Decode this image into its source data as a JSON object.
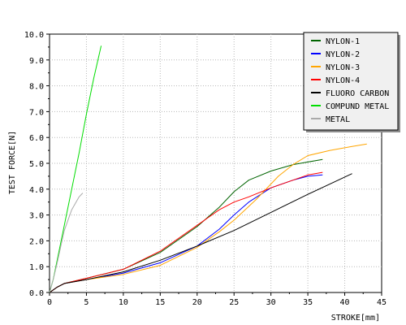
{
  "chart_data": {
    "type": "line",
    "xlabel": "STROKE[mm]",
    "ylabel": "TEST FORCE[N]",
    "xlim": [
      0,
      45
    ],
    "ylim": [
      0,
      10
    ],
    "x_ticks": [
      0,
      5,
      10,
      15,
      20,
      25,
      30,
      35,
      40,
      45
    ],
    "y_ticks": [
      0,
      1,
      2,
      3,
      4,
      5,
      6,
      7,
      8,
      9,
      10
    ],
    "x_tick_labels": [
      "0",
      "5",
      "10",
      "15",
      "20",
      "25",
      "30",
      "35",
      "40",
      "45"
    ],
    "y_tick_labels": [
      "0.0",
      "1.0",
      "2.0",
      "3.0",
      "4.0",
      "5.0",
      "6.0",
      "7.0",
      "8.0",
      "9.0",
      "10.0"
    ],
    "grid": "dotted",
    "legend_position": "top-right",
    "series": [
      {
        "name": "NYLON-1",
        "color": "#006400",
        "points": [
          [
            0,
            0
          ],
          [
            1,
            0.2
          ],
          [
            2,
            0.35
          ],
          [
            5,
            0.55
          ],
          [
            10,
            0.9
          ],
          [
            15,
            1.55
          ],
          [
            20,
            2.55
          ],
          [
            23,
            3.3
          ],
          [
            25,
            3.9
          ],
          [
            27,
            4.35
          ],
          [
            30,
            4.7
          ],
          [
            33,
            4.95
          ],
          [
            35,
            5.05
          ],
          [
            37,
            5.15
          ]
        ]
      },
      {
        "name": "NYLON-2",
        "color": "#0000ff",
        "points": [
          [
            0,
            0
          ],
          [
            1,
            0.2
          ],
          [
            2,
            0.35
          ],
          [
            5,
            0.5
          ],
          [
            10,
            0.75
          ],
          [
            15,
            1.15
          ],
          [
            20,
            1.8
          ],
          [
            23,
            2.45
          ],
          [
            25,
            3.0
          ],
          [
            27,
            3.5
          ],
          [
            30,
            4.05
          ],
          [
            33,
            4.35
          ],
          [
            35,
            4.5
          ],
          [
            37,
            4.55
          ]
        ]
      },
      {
        "name": "NYLON-3",
        "color": "#ffa500",
        "points": [
          [
            0,
            0
          ],
          [
            1,
            0.2
          ],
          [
            2,
            0.35
          ],
          [
            5,
            0.5
          ],
          [
            10,
            0.7
          ],
          [
            15,
            1.05
          ],
          [
            20,
            1.75
          ],
          [
            23,
            2.35
          ],
          [
            25,
            2.8
          ],
          [
            28,
            3.6
          ],
          [
            31,
            4.5
          ],
          [
            33,
            4.95
          ],
          [
            35,
            5.3
          ],
          [
            38,
            5.5
          ],
          [
            41,
            5.65
          ],
          [
            43,
            5.75
          ]
        ]
      },
      {
        "name": "NYLON-4",
        "color": "#ff0000",
        "points": [
          [
            0,
            0
          ],
          [
            1,
            0.2
          ],
          [
            2,
            0.35
          ],
          [
            5,
            0.55
          ],
          [
            10,
            0.9
          ],
          [
            15,
            1.6
          ],
          [
            20,
            2.6
          ],
          [
            23,
            3.2
          ],
          [
            25,
            3.5
          ],
          [
            27,
            3.7
          ],
          [
            30,
            4.05
          ],
          [
            33,
            4.35
          ],
          [
            35,
            4.55
          ],
          [
            37,
            4.65
          ]
        ]
      },
      {
        "name": "FLUORO CARBON",
        "color": "#000000",
        "points": [
          [
            0,
            0
          ],
          [
            1,
            0.2
          ],
          [
            2,
            0.35
          ],
          [
            5,
            0.5
          ],
          [
            10,
            0.8
          ],
          [
            15,
            1.25
          ],
          [
            20,
            1.8
          ],
          [
            25,
            2.4
          ],
          [
            30,
            3.1
          ],
          [
            35,
            3.8
          ],
          [
            38,
            4.2
          ],
          [
            41,
            4.6
          ]
        ]
      },
      {
        "name": "COMPUND METAL",
        "color": "#00dd00",
        "points": [
          [
            0,
            0
          ],
          [
            0.5,
            0.5
          ],
          [
            1,
            1.2
          ],
          [
            2,
            2.6
          ],
          [
            3,
            4.0
          ],
          [
            4,
            5.4
          ],
          [
            5,
            6.9
          ],
          [
            6,
            8.3
          ],
          [
            7,
            9.55
          ]
        ]
      },
      {
        "name": "METAL",
        "color": "#aaaaaa",
        "points": [
          [
            0,
            0
          ],
          [
            0.5,
            0.5
          ],
          [
            1,
            1.1
          ],
          [
            1.5,
            1.75
          ],
          [
            2,
            2.4
          ],
          [
            3,
            3.2
          ],
          [
            4,
            3.7
          ],
          [
            4.5,
            3.85
          ]
        ]
      }
    ]
  }
}
